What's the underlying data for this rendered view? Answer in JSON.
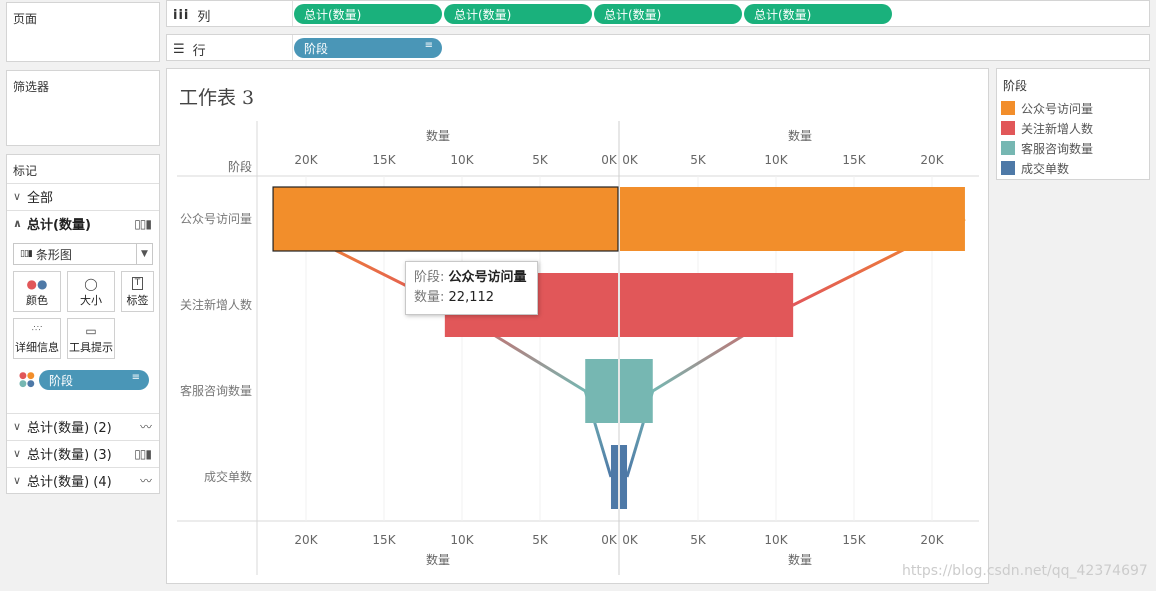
{
  "panels": {
    "pages": "页面",
    "filters": "筛选器",
    "marks": "标记"
  },
  "marks": {
    "all_label": "全部",
    "measure_label": "总计(数量)",
    "mark_type": "条形图",
    "buttons": {
      "color": "颜色",
      "size": "大小",
      "label": "标签",
      "detail": "详细信息",
      "tooltip": "工具提示"
    },
    "field_pill": "阶段",
    "extra_rows": [
      "总计(数量) (2)",
      "总计(数量) (3)",
      "总计(数量) (4)"
    ]
  },
  "shelves": {
    "columns_label": "列",
    "rows_label": "行",
    "column_pills": [
      "总计(数量)",
      "总计(数量)",
      "总计(数量)",
      "总计(数量)"
    ],
    "row_pill": "阶段"
  },
  "sheet_title": "工作表 3",
  "legend": {
    "title": "阶段",
    "items": [
      {
        "label": "公众号访问量",
        "color": "#f28e2b"
      },
      {
        "label": "关注新增人数",
        "color": "#e15759"
      },
      {
        "label": "客服咨询数量",
        "color": "#76b7b2"
      },
      {
        "label": "成交单数",
        "color": "#4e79a7"
      }
    ]
  },
  "tooltip": {
    "field_label": "阶段:",
    "field_value": "公众号访问量",
    "measure_label": "数量:",
    "measure_value": "22,112"
  },
  "chart_data": {
    "type": "bar",
    "orientation": "horizontal",
    "layout": "mirrored funnel",
    "row_header": "阶段",
    "categories": [
      "公众号访问量",
      "关注新增人数",
      "客服咨询数量",
      "成交单数"
    ],
    "values": [
      22112,
      11100,
      2100,
      450
    ],
    "colors": [
      "#f28e2b",
      "#e15759",
      "#76b7b2",
      "#4e79a7"
    ],
    "left_axis": {
      "label": "数量",
      "reversed": true,
      "ticks": [
        20000,
        15000,
        10000,
        5000,
        0
      ],
      "tick_labels": [
        "20K",
        "15K",
        "10K",
        "5K",
        "0K"
      ]
    },
    "right_axis": {
      "label": "数量",
      "reversed": false,
      "ticks": [
        0,
        5000,
        10000,
        15000,
        20000
      ],
      "tick_labels": [
        "0K",
        "5K",
        "10K",
        "15K",
        "20K"
      ]
    },
    "selected_category": "公众号访问量",
    "connecting_lines": true
  },
  "watermark": "https://blog.csdn.net/qq_42374697"
}
